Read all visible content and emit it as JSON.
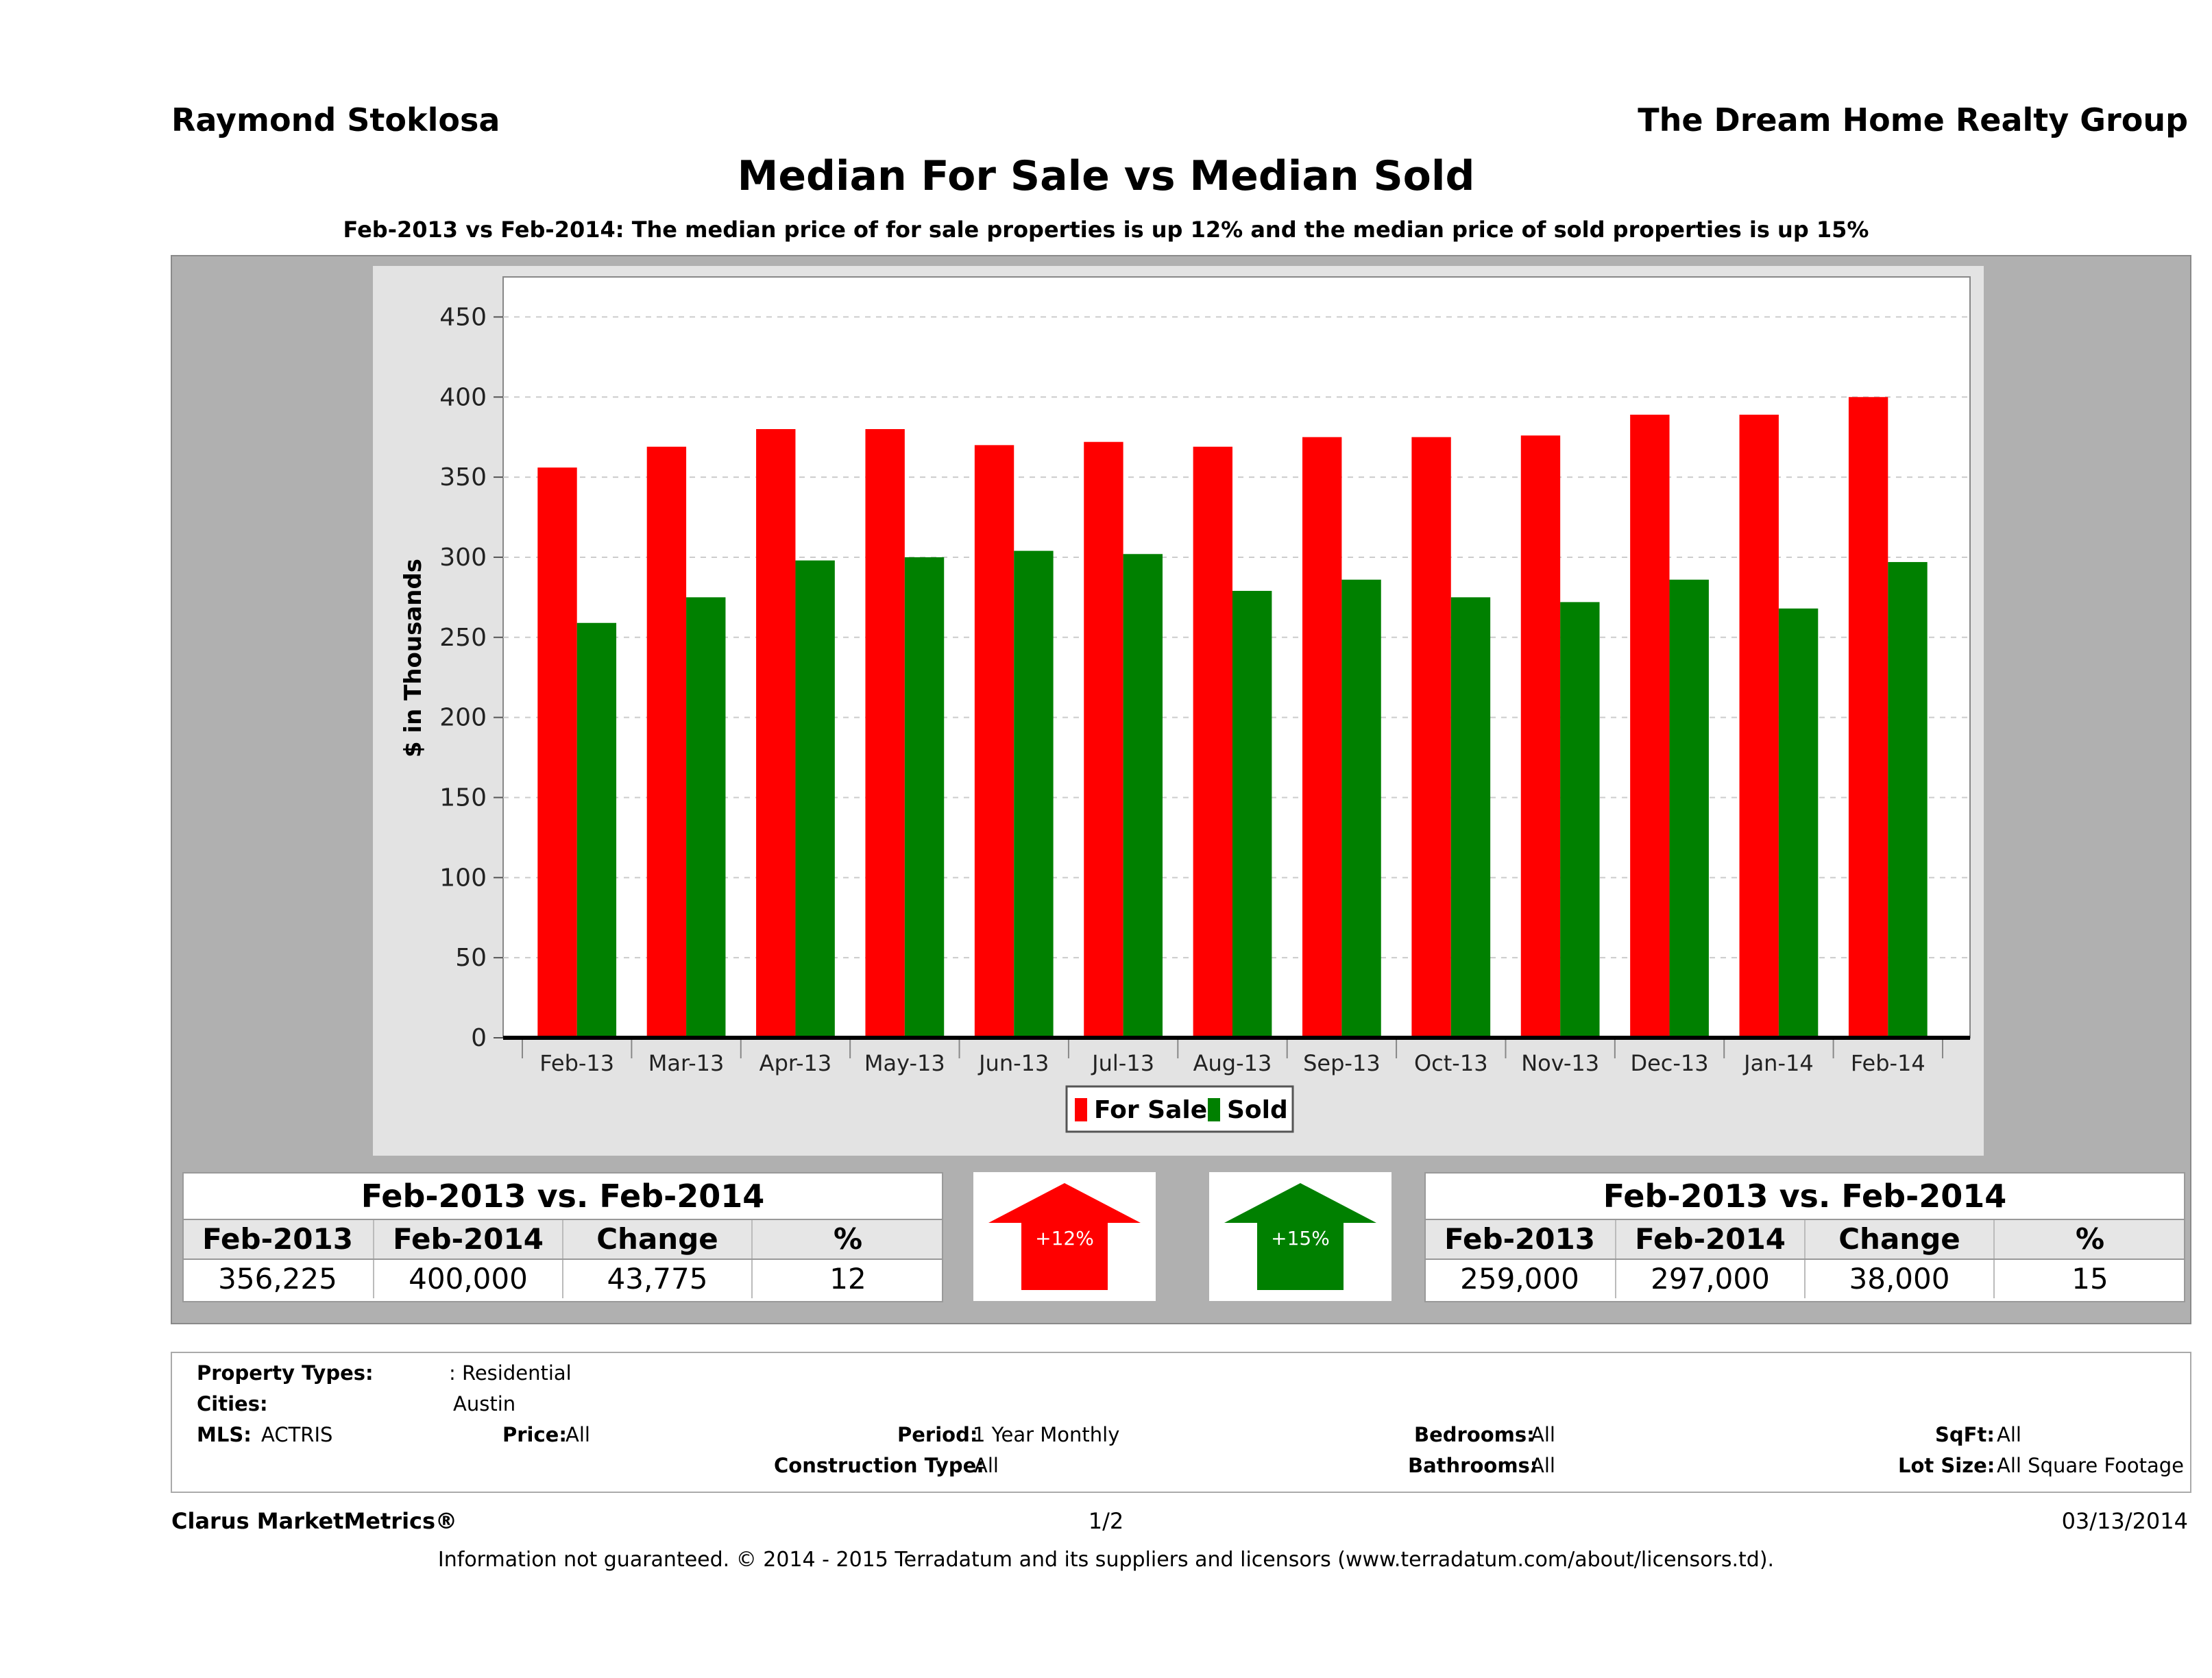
{
  "header": {
    "agent_name": "Raymond Stoklosa",
    "company": "The Dream Home Realty Group",
    "title": "Median For Sale vs Median Sold",
    "subtitle": "Feb-2013 vs Feb-2014: The median price of for sale properties is up 12% and the median price of sold properties is up 15%"
  },
  "chart_data": {
    "type": "bar",
    "ylabel": "$ in Thousands",
    "xlabel": "",
    "ylim": [
      0,
      475
    ],
    "yticks": [
      0,
      50,
      100,
      150,
      200,
      250,
      300,
      350,
      400,
      450
    ],
    "categories": [
      "Feb-13",
      "Mar-13",
      "Apr-13",
      "May-13",
      "Jun-13",
      "Jul-13",
      "Aug-13",
      "Sep-13",
      "Oct-13",
      "Nov-13",
      "Dec-13",
      "Jan-14",
      "Feb-14"
    ],
    "series": [
      {
        "name": "For Sale",
        "color": "#ff0000",
        "values": [
          356,
          369,
          380,
          380,
          370,
          372,
          369,
          375,
          375,
          376,
          389,
          389,
          400
        ]
      },
      {
        "name": "Sold",
        "color": "#008000",
        "values": [
          259,
          275,
          298,
          300,
          304,
          302,
          279,
          286,
          275,
          272,
          286,
          268,
          297
        ]
      }
    ],
    "grid": true,
    "legend": "bottom-center"
  },
  "tables": {
    "for_sale": {
      "title": "Feb-2013 vs. Feb-2014",
      "headers": [
        "Feb-2013",
        "Feb-2014",
        "Change",
        "%"
      ],
      "values": [
        "356,225",
        "400,000",
        "43,775",
        "12"
      ]
    },
    "sold": {
      "title": "Feb-2013 vs. Feb-2014",
      "headers": [
        "Feb-2013",
        "Feb-2014",
        "Change",
        "%"
      ],
      "values": [
        "259,000",
        "297,000",
        "38,000",
        "15"
      ]
    }
  },
  "arrows": {
    "for_sale": {
      "label": "+12%",
      "color": "#ff0000",
      "icon": "arrow-up-icon"
    },
    "sold": {
      "label": "+15%",
      "color": "#008000",
      "icon": "arrow-up-icon"
    }
  },
  "criteria": {
    "property_types_label": "Property Types:",
    "property_types_value": ": Residential",
    "cities_label": "Cities:",
    "cities_value": "Austin",
    "mls_label": "MLS:",
    "mls_value": "ACTRIS",
    "price_label": "Price:",
    "price_value": "All",
    "period_label": "Period:",
    "period_value": "1 Year Monthly",
    "construction_label": "Construction Type:",
    "construction_value": "All",
    "bedrooms_label": "Bedrooms:",
    "bedrooms_value": "All",
    "bathrooms_label": "Bathrooms:",
    "bathrooms_value": "All",
    "sqft_label": "SqFt:",
    "sqft_value": "All",
    "lot_label": "Lot Size:",
    "lot_value": "All Square Footage"
  },
  "footer": {
    "brand": "Clarus MarketMetrics®",
    "page": "1/2",
    "date": "03/13/2014",
    "disclaimer": "Information not guaranteed. © 2014 - 2015 Terradatum and its suppliers and licensors (www.terradatum.com/about/licensors.td)."
  }
}
